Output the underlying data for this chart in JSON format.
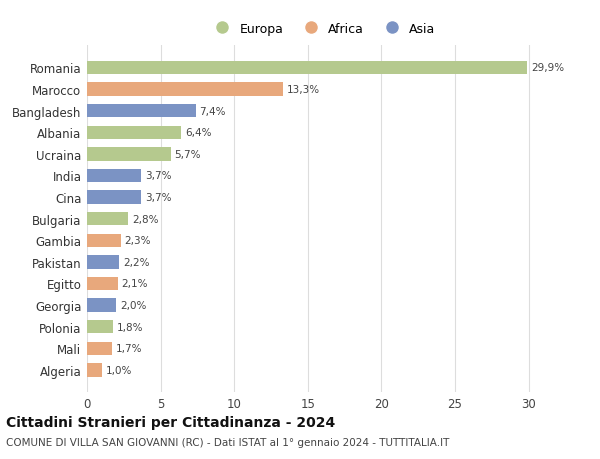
{
  "categories": [
    "Romania",
    "Marocco",
    "Bangladesh",
    "Albania",
    "Ucraina",
    "India",
    "Cina",
    "Bulgaria",
    "Gambia",
    "Pakistan",
    "Egitto",
    "Georgia",
    "Polonia",
    "Mali",
    "Algeria"
  ],
  "values": [
    29.9,
    13.3,
    7.4,
    6.4,
    5.7,
    3.7,
    3.7,
    2.8,
    2.3,
    2.2,
    2.1,
    2.0,
    1.8,
    1.7,
    1.0
  ],
  "labels": [
    "29,9%",
    "13,3%",
    "7,4%",
    "6,4%",
    "5,7%",
    "3,7%",
    "3,7%",
    "2,8%",
    "2,3%",
    "2,2%",
    "2,1%",
    "2,0%",
    "1,8%",
    "1,7%",
    "1,0%"
  ],
  "continents": [
    "Europa",
    "Africa",
    "Asia",
    "Europa",
    "Europa",
    "Asia",
    "Asia",
    "Europa",
    "Africa",
    "Asia",
    "Africa",
    "Asia",
    "Europa",
    "Africa",
    "Africa"
  ],
  "colors": {
    "Europa": "#b5c98e",
    "Africa": "#e8a87c",
    "Asia": "#7b93c4"
  },
  "xlim": [
    0,
    32
  ],
  "xticks": [
    0,
    5,
    10,
    15,
    20,
    25,
    30
  ],
  "title": "Cittadini Stranieri per Cittadinanza - 2024",
  "subtitle": "COMUNE DI VILLA SAN GIOVANNI (RC) - Dati ISTAT al 1° gennaio 2024 - TUTTITALIA.IT",
  "background_color": "#ffffff",
  "grid_color": "#dddddd"
}
